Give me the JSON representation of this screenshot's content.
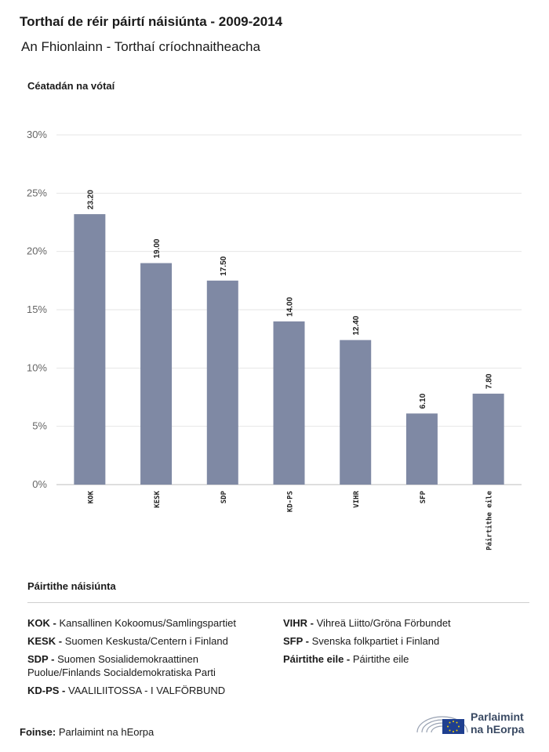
{
  "header": {
    "title": "Torthaí de réir páirtí náisiúnta - 2009-2014",
    "subtitle": "An Fhionlainn - Torthaí críochnaitheacha"
  },
  "chart_data": {
    "type": "bar",
    "ylabel": "Céatadán na vótaí",
    "categories": [
      "KOK",
      "KESK",
      "SDP",
      "KD-PS",
      "VIHR",
      "SFP",
      "Páirtithe eile"
    ],
    "values": [
      23.2,
      19.0,
      17.5,
      14.0,
      12.4,
      6.1,
      7.8
    ],
    "value_labels": [
      "23.20",
      "19.00",
      "17.50",
      "14.00",
      "12.40",
      "6.10",
      "7.80"
    ],
    "ylim": [
      0,
      30
    ],
    "yticks": [
      "0%",
      "5%",
      "10%",
      "15%",
      "20%",
      "25%",
      "30%"
    ],
    "ytick_values": [
      0,
      5,
      10,
      15,
      20,
      25,
      30
    ],
    "grid": true,
    "bar_color": "#7f89a4"
  },
  "legend": {
    "title": "Páirtithe náisiúnta",
    "left": [
      {
        "abbr": "KOK -",
        "name": "Kansallinen Kokoomus/Samlingspartiet"
      },
      {
        "abbr": "KESK -",
        "name": "Suomen Keskusta/Centern i Finland"
      },
      {
        "abbr": "SDP -",
        "name": "Suomen Sosialidemokraattinen Puolue/Finlands Socialdemokratiska Parti"
      },
      {
        "abbr": "KD-PS -",
        "name": "VAALILIITOSSA - I VALFÖRBUND"
      }
    ],
    "right": [
      {
        "abbr": "VIHR -",
        "name": "Vihreä Liitto/Gröna Förbundet"
      },
      {
        "abbr": "SFP -",
        "name": "Svenska folkpartiet i Finland"
      },
      {
        "abbr": "Páirtithe eile -",
        "name": "Páirtithe eile"
      }
    ]
  },
  "source": {
    "label": "Foinse:",
    "text": "Parlaimint na hEorpa"
  },
  "logo": {
    "line1": "Parlaimint",
    "line2": "na hEorpa",
    "icon": "european-parliament-hemicycle-icon"
  }
}
